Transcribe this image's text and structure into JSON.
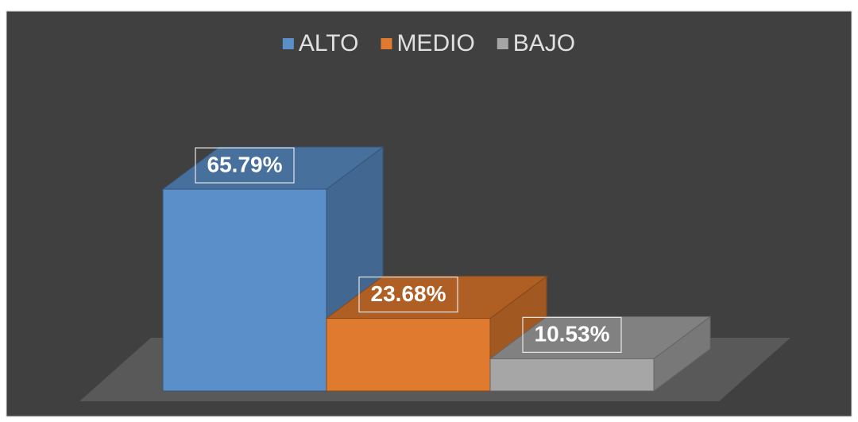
{
  "chart_data": {
    "type": "bar3d",
    "series": [
      {
        "name": "ALTO",
        "color": "#5b8fc9",
        "values": [
          65.79
        ],
        "value_labels": [
          "65.79%"
        ]
      },
      {
        "name": "MEDIO",
        "color": "#e07a2e",
        "values": [
          23.68
        ],
        "value_labels": [
          "23.68%"
        ]
      },
      {
        "name": "BAJO",
        "color": "#a6a6a6",
        "values": [
          10.53
        ],
        "value_labels": [
          "10.53%"
        ]
      }
    ],
    "legend": "top"
  }
}
